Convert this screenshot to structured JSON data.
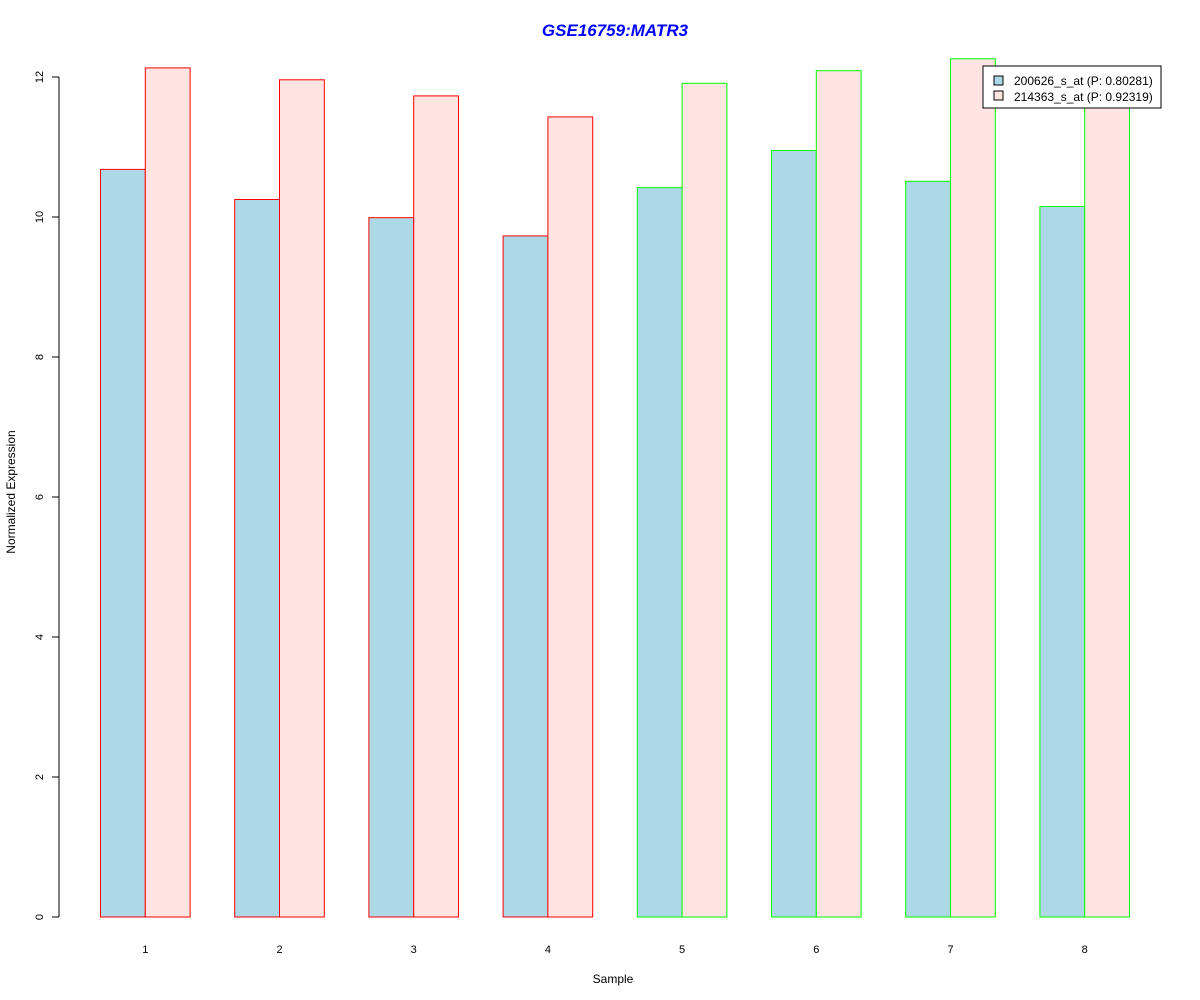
{
  "chart_data": {
    "type": "bar",
    "title": "GSE16759:MATR3",
    "xlabel": "Sample",
    "ylabel": "Normalized Expression",
    "categories": [
      "1",
      "2",
      "3",
      "4",
      "5",
      "6",
      "7",
      "8"
    ],
    "series": [
      {
        "name": "200626_s_at (P: 0.80281)",
        "fill": "#add8e6",
        "values": [
          10.68,
          10.25,
          9.99,
          9.73,
          10.42,
          10.95,
          10.51,
          10.15
        ]
      },
      {
        "name": "214363_s_at (P: 0.92319)",
        "fill": "#ffe4e1",
        "values": [
          12.13,
          11.96,
          11.73,
          11.43,
          11.91,
          12.09,
          12.26,
          11.93
        ]
      }
    ],
    "group_border_colors": [
      "#ff0000",
      "#ff0000",
      "#ff0000",
      "#ff0000",
      "#00ff00",
      "#00ff00",
      "#00ff00",
      "#00ff00"
    ],
    "ylim": [
      0,
      12
    ],
    "yticks": [
      "0",
      "2",
      "4",
      "6",
      "8",
      "10",
      "12"
    ],
    "grid": false,
    "legend_position": "top-right",
    "title_color": "#0000ff"
  }
}
